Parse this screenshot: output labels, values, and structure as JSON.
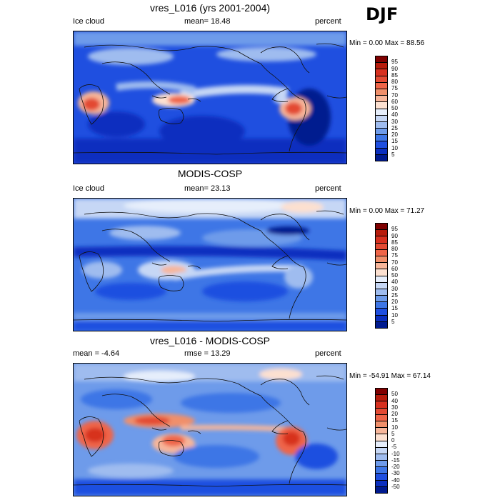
{
  "season": "DJF",
  "panels": [
    {
      "title": "vres_L016 (yrs 2001-2004)",
      "left_label": "Ice cloud",
      "center_label": "mean=  18.48",
      "right_label": "percent",
      "minmax": "Min =   0.00 Max =  88.56",
      "scale": "abs"
    },
    {
      "title": "MODIS-COSP",
      "left_label": "Ice cloud",
      "center_label": "mean=  23.13",
      "right_label": "percent",
      "minmax": "Min =   0.00 Max =  71.27",
      "scale": "abs"
    },
    {
      "title": "vres_L016 - MODIS-COSP",
      "left_label": "mean =  -4.64",
      "center_label": "rmse =  13.29",
      "right_label": "percent",
      "minmax": "Min = -54.91 Max =  67.14",
      "scale": "diff"
    }
  ],
  "colorbars": {
    "abs": {
      "labels": [
        "95",
        "90",
        "85",
        "80",
        "75",
        "70",
        "60",
        "50",
        "40",
        "30",
        "25",
        "20",
        "15",
        "10",
        "5"
      ],
      "colors": [
        "#7f0000",
        "#b71c0c",
        "#d7301f",
        "#e34a33",
        "#ef6548",
        "#f08f6a",
        "#f7b69a",
        "#fce0d0",
        "#e6eefb",
        "#c6d7f5",
        "#9fbcef",
        "#6e9bea",
        "#3e76e6",
        "#1f4fe0",
        "#0b2fbf",
        "#001a8f"
      ]
    },
    "diff": {
      "labels": [
        "50",
        "40",
        "30",
        "20",
        "15",
        "10",
        "5",
        "0",
        "-5",
        "-10",
        "-15",
        "-20",
        "-30",
        "-40",
        "-50"
      ],
      "colors": [
        "#7f0000",
        "#b71c0c",
        "#d7301f",
        "#e34a33",
        "#ef6548",
        "#f08f6a",
        "#f7b69a",
        "#fce0d0",
        "#e6eefb",
        "#c6d7f5",
        "#9fbcef",
        "#6e9bea",
        "#3e76e6",
        "#1f4fe0",
        "#0b2fbf",
        "#001a8f"
      ]
    }
  }
}
